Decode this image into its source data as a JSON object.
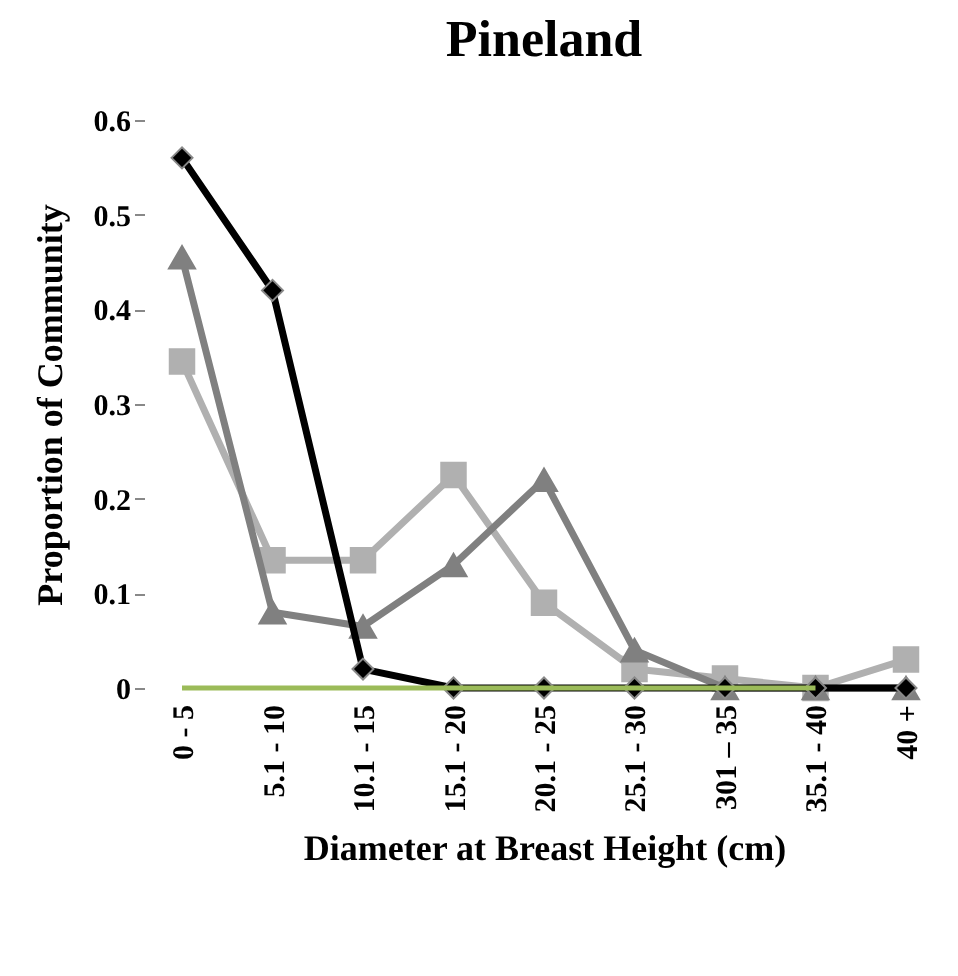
{
  "chart_data": {
    "type": "line",
    "title": "Pineland",
    "xlabel": "Diameter at Breast Height (cm)",
    "ylabel": "Proportion of Community",
    "categories": [
      "0 - 5",
      "5.1 - 10",
      "10.1 - 15",
      "15.1 - 20",
      "20.1 - 25",
      "25.1 - 30",
      "301 – 35",
      "35.1 - 40",
      "40 +"
    ],
    "series": [
      {
        "color": "#b0b0b0",
        "marker": "square",
        "values": [
          0.345,
          0.135,
          0.135,
          0.225,
          0.09,
          0.02,
          0.01,
          0,
          0.03
        ]
      },
      {
        "color": "#808080",
        "marker": "triangle",
        "values": [
          0.455,
          0.08,
          0.065,
          0.13,
          0.22,
          0.04,
          0,
          0,
          0
        ]
      },
      {
        "color": "#000000",
        "marker": "diamond",
        "values": [
          0.56,
          0.42,
          0.02,
          0,
          0,
          0,
          0,
          0,
          0
        ]
      },
      {
        "color": "#9bbb59",
        "marker": "none",
        "values": [
          0,
          0,
          0,
          0,
          0,
          0,
          0,
          0,
          null
        ]
      }
    ],
    "ylim": [
      0,
      0.6
    ],
    "yticks": [
      0,
      0.1,
      0.2,
      0.3,
      0.4,
      0.5,
      0.6
    ],
    "grid": false
  }
}
